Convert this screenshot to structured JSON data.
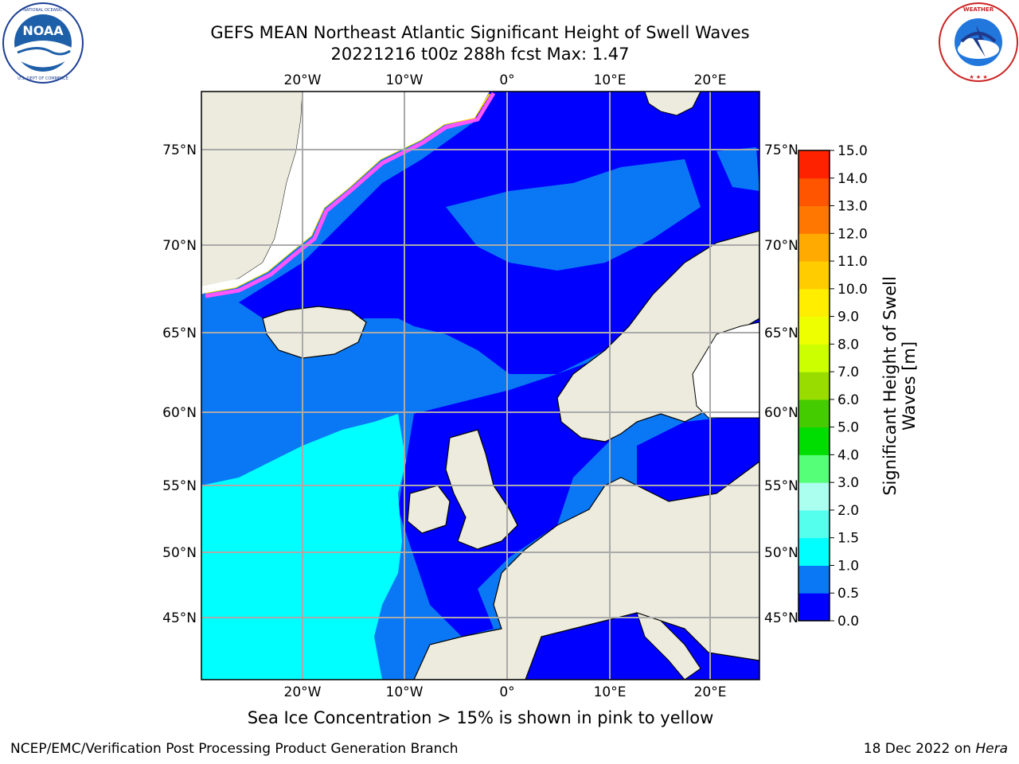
{
  "title": {
    "line1": "GEFS MEAN Northeast Atlantic Significant Height of Swell Waves",
    "line2": "20221216 t00z 288h fcst   Max: 1.47"
  },
  "logos": {
    "left": {
      "name": "noaa-logo",
      "ring_text": "NATIONAL OCEANIC AND ATMOSPHERIC ADMINISTRATION",
      "bottom_text": "U.S. DEPARTMENT OF COMMERCE",
      "center_text": "NOAA"
    },
    "right": {
      "name": "nws-logo",
      "ring_text": "NATIONAL WEATHER SERVICE"
    }
  },
  "map": {
    "region": "Northeast Atlantic",
    "lon_ticks": [
      "20°W",
      "10°W",
      "0°",
      "10°E",
      "20°E"
    ],
    "lat_ticks": [
      "75°N",
      "70°N",
      "65°N",
      "60°N",
      "55°N",
      "50°N",
      "45°N"
    ],
    "colors": {
      "land": "#ecebdd",
      "ocean_low": "#0000ff",
      "ocean_mid": "#0a78f5",
      "ocean_high": "#00ffff",
      "ice_edge": "#ff55ff",
      "ice_yellow": "#ffdd00",
      "grid": "#aaaaaa"
    }
  },
  "colorbar": {
    "label_line1": "Significant Height of Swell",
    "label_line2": "Waves [m]",
    "ticks": [
      "15.0",
      "14.0",
      "13.0",
      "12.0",
      "11.0",
      "10.0",
      "9.0",
      "8.0",
      "7.0",
      "6.0",
      "5.0",
      "4.0",
      "3.0",
      "2.0",
      "1.5",
      "1.0",
      "0.5",
      "0.0"
    ],
    "colors": [
      "#0000ff",
      "#0a78f5",
      "#00ffff",
      "#55ffee",
      "#aaffee",
      "#55ff77",
      "#00dd00",
      "#44cc00",
      "#99dd00",
      "#ccff00",
      "#eeff00",
      "#ffee00",
      "#ffcc00",
      "#ffaa00",
      "#ff7700",
      "#ff5500",
      "#ff2200"
    ]
  },
  "caption": "Sea Ice Concentration > 15% is shown in pink to yellow",
  "footer": {
    "left": "NCEP/EMC/Verification Post Processing Product Generation Branch",
    "right_prefix": "18 Dec 2022 on ",
    "right_host": "Hera"
  }
}
